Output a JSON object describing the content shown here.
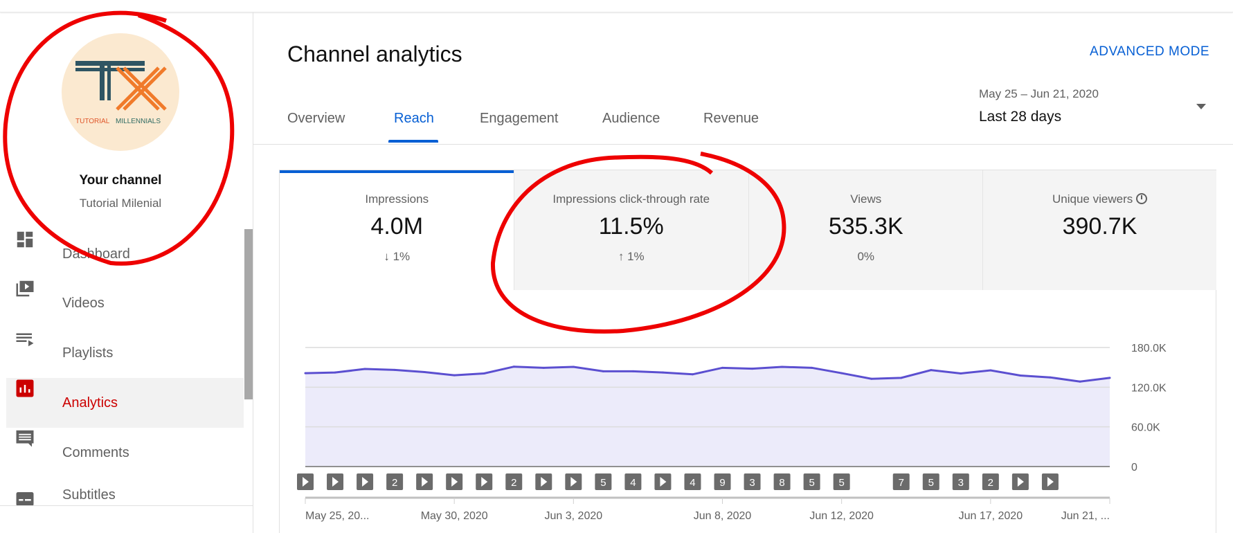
{
  "channel": {
    "logo_text": "TX",
    "logo_caption_1": "TUTORIAL",
    "logo_caption_2": "MILLENNIALS",
    "title": "Your channel",
    "name": "Tutorial Milenial"
  },
  "nav": [
    {
      "label": "Dashboard",
      "icon": "dashboard-icon"
    },
    {
      "label": "Videos",
      "icon": "videos-icon"
    },
    {
      "label": "Playlists",
      "icon": "playlists-icon"
    },
    {
      "label": "Analytics",
      "icon": "analytics-icon",
      "active": true
    },
    {
      "label": "Comments",
      "icon": "comments-icon"
    },
    {
      "label": "Subtitles",
      "icon": "subtitles-icon"
    }
  ],
  "header": {
    "title": "Channel analytics",
    "advanced_mode": "ADVANCED MODE"
  },
  "tabs": [
    "Overview",
    "Reach",
    "Engagement",
    "Audience",
    "Revenue"
  ],
  "active_tab": "Reach",
  "date_range": {
    "range": "May 25 – Jun 21, 2020",
    "label": "Last 28 days"
  },
  "cards": [
    {
      "label": "Impressions",
      "value": "4.0M",
      "delta": "↓ 1%"
    },
    {
      "label": "Impressions click-through rate",
      "value": "11.5%",
      "delta": "↑ 1%"
    },
    {
      "label": "Views",
      "value": "535.3K",
      "delta": "0%"
    },
    {
      "label": "Unique viewers",
      "value": "390.7K",
      "delta": ""
    }
  ],
  "colors": {
    "accent": "#065fd4",
    "line": "#5b4fd0",
    "fill": "#ecebfa",
    "annotation": "#ee0000"
  },
  "chart_data": {
    "type": "area",
    "title": "Impressions",
    "ylim": [
      0,
      180000
    ],
    "yticks": [
      "180.0K",
      "120.0K",
      "60.0K",
      "0"
    ],
    "ytick_values": [
      180000,
      120000,
      60000,
      0
    ],
    "xlabels": [
      {
        "i": 0,
        "label": "May 25, 20..."
      },
      {
        "i": 5,
        "label": "May 30, 2020"
      },
      {
        "i": 9,
        "label": "Jun 3, 2020"
      },
      {
        "i": 14,
        "label": "Jun 8, 2020"
      },
      {
        "i": 18,
        "label": "Jun 12, 2020"
      },
      {
        "i": 23,
        "label": "Jun 17, 2020"
      },
      {
        "i": 27,
        "label": "Jun 21, ..."
      }
    ],
    "values": [
      141200,
      142200,
      147500,
      146100,
      142900,
      138000,
      140800,
      151000,
      149300,
      150700,
      144000,
      144000,
      142200,
      139400,
      149300,
      147900,
      150700,
      149300,
      141200,
      132700,
      134100,
      145800,
      140800,
      145400,
      137600,
      134800,
      128500,
      134100
    ],
    "markers": [
      "play",
      "play",
      "play",
      "2",
      "play",
      "play",
      "play",
      "2",
      "play",
      "play",
      "5",
      "4",
      "play",
      "4",
      "9",
      "3",
      "8",
      "5",
      "5",
      "",
      "7",
      "5",
      "3",
      "2",
      "play",
      "play",
      "",
      ""
    ]
  }
}
